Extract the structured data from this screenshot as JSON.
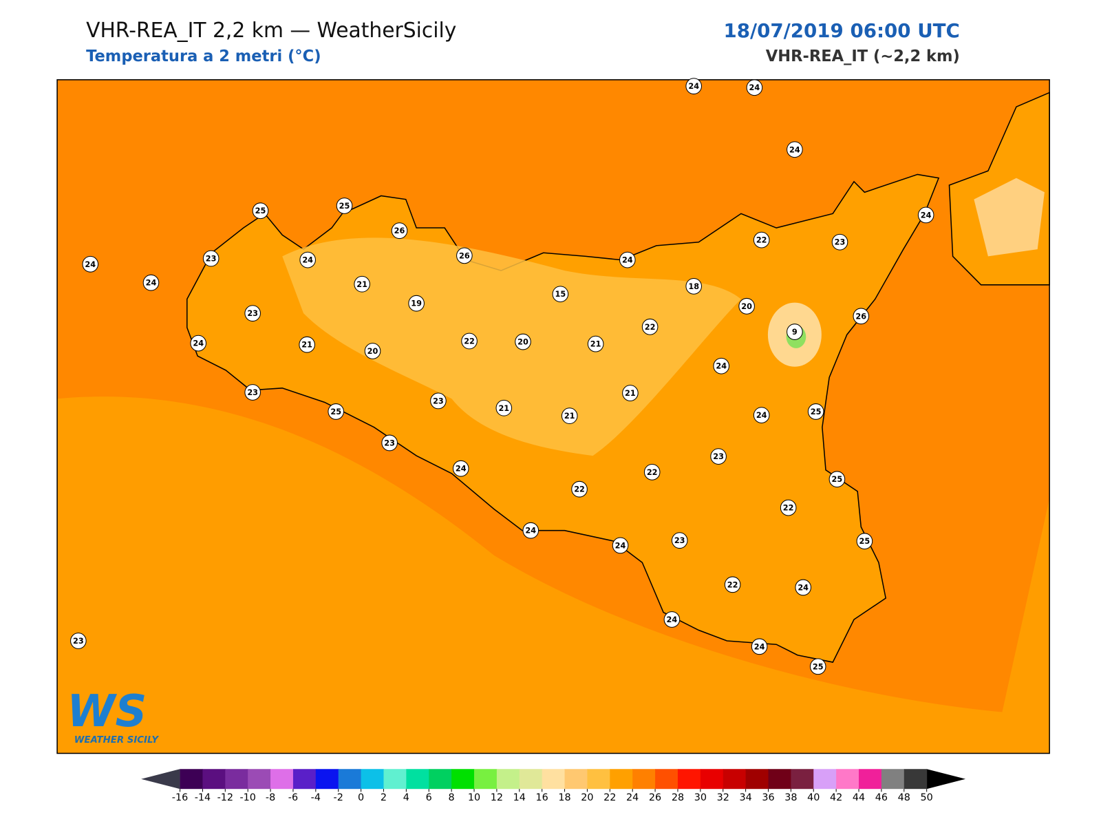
{
  "header": {
    "title": "VHR-REA_IT 2,2 km — WeatherSicily",
    "subtitle": "Temperatura a 2 metri (°C)",
    "datetime": "18/07/2019 06:00 UTC",
    "model": "VHR-REA_IT (~2,2 km)"
  },
  "stations": [
    24,
    24,
    24,
    25,
    25,
    26,
    24,
    24,
    23,
    24,
    26,
    24,
    22,
    23,
    24,
    21,
    19,
    15,
    18,
    20,
    23,
    22,
    9,
    26,
    24,
    21,
    20,
    22,
    20,
    21,
    24,
    21,
    23,
    25,
    23,
    21,
    21,
    24,
    25,
    23,
    23,
    24,
    22,
    22,
    25,
    22,
    24,
    24,
    23,
    25,
    22,
    24,
    23,
    24,
    24,
    25
  ],
  "colorbar": {
    "ticks": [
      -16,
      -14,
      -12,
      -10,
      -8,
      -6,
      -4,
      -2,
      0,
      2,
      4,
      6,
      8,
      10,
      12,
      14,
      16,
      18,
      20,
      22,
      24,
      26,
      28,
      30,
      32,
      34,
      36,
      38,
      40,
      42,
      44,
      46,
      48,
      50
    ],
    "colors": [
      "#3d0055",
      "#5b0f80",
      "#7a2c9e",
      "#9b4bb5",
      "#de6fe8",
      "#5a1fc8",
      "#0a14f0",
      "#1a7ad8",
      "#0cc0e8",
      "#60f0d0",
      "#00e0a0",
      "#00d060",
      "#00e000",
      "#78f040",
      "#c4f08a",
      "#e0e898",
      "#ffe0a0",
      "#ffc870",
      "#ffc040",
      "#ffa000",
      "#ff8000",
      "#ff5000",
      "#ff1500",
      "#e80000",
      "#c80000",
      "#a00000",
      "#700018",
      "#7a2040",
      "#d8a0f8",
      "#ff78c8",
      "#f0209a",
      "#808080",
      "#383838"
    ],
    "under_color": "#3a3a4a",
    "over_color": "#000000"
  },
  "logo": {
    "mark": "WS",
    "name": "WEATHER SICILY"
  }
}
